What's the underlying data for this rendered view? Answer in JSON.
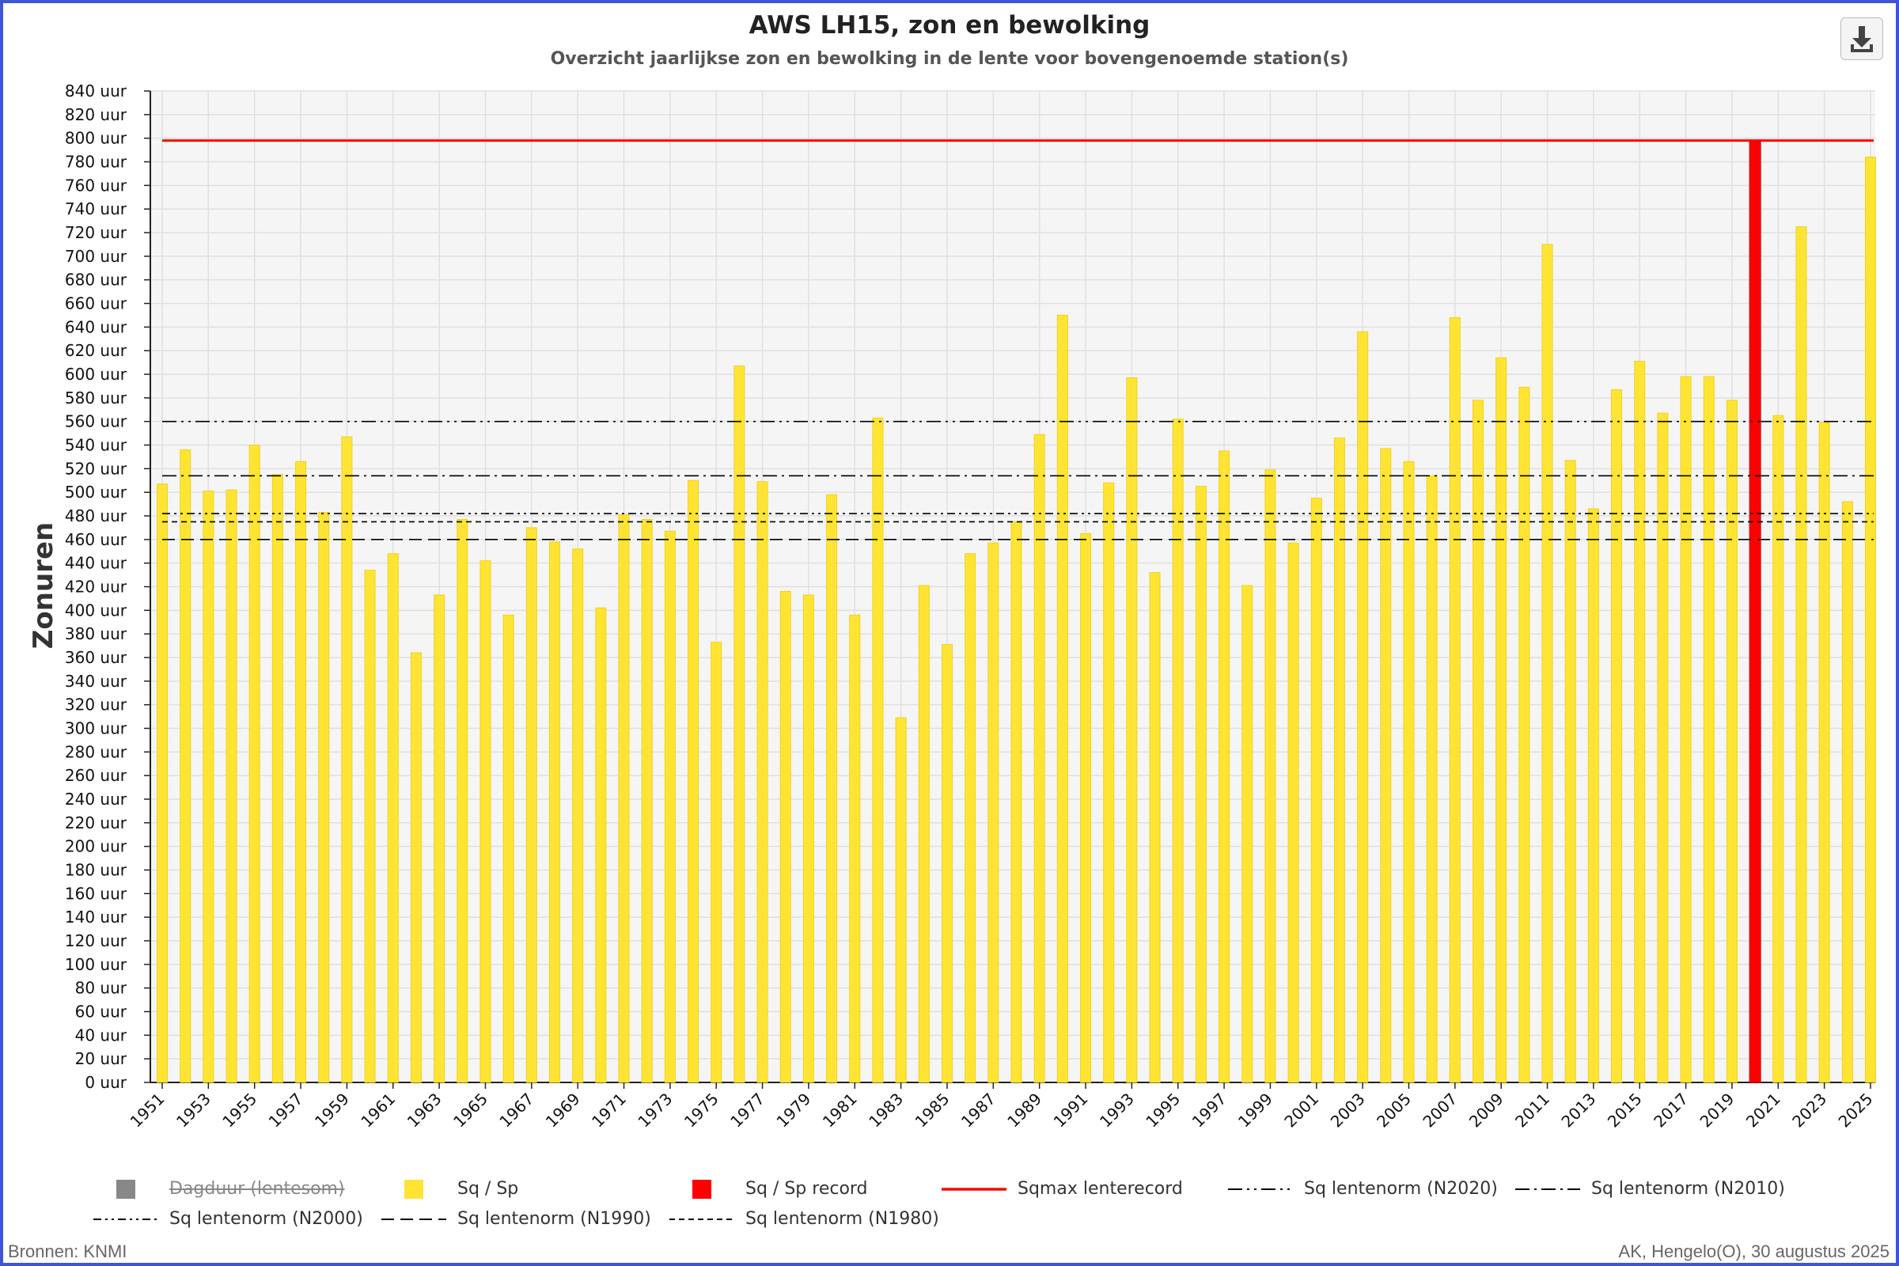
{
  "title": "AWS LH15, zon en bewolking",
  "subtitle": "Overzicht jaarlijkse zon en bewolking in de lente voor bovengenoemde station(s)",
  "download_icon": "download-icon",
  "source_text": "Bronnen: KNMI",
  "credit_text": "AK, Hengelo(O), 30 augustus 2025",
  "colors": {
    "bar": "#FFE433",
    "bar_record": "#FF0000",
    "record_line": "#FF0000",
    "norm_line": "#000000",
    "plot_bg": "#F5F5F5",
    "grid": "#E0E0E0"
  },
  "legend": [
    {
      "label": "Dagduur (lentesom)",
      "symbol": "square",
      "color": "#888888",
      "disabled": true
    },
    {
      "label": "Sq / Sp",
      "symbol": "square",
      "color": "#FFE433"
    },
    {
      "label": "Sq / Sp record",
      "symbol": "square",
      "color": "#FF0000"
    },
    {
      "label": "Sqmax lenterecord",
      "symbol": "line",
      "color": "#FF0000",
      "dash": "solid"
    },
    {
      "label": "Sq lentenorm (N2020)",
      "symbol": "line",
      "color": "#000000",
      "dash": "longdashdotdot"
    },
    {
      "label": "Sq lentenorm (N2010)",
      "symbol": "line",
      "color": "#000000",
      "dash": "longdashdot"
    },
    {
      "label": "Sq lentenorm (N2000)",
      "symbol": "line",
      "color": "#000000",
      "dash": "dashdotdot"
    },
    {
      "label": "Sq lentenorm (N1990)",
      "symbol": "line",
      "color": "#000000",
      "dash": "longdash"
    },
    {
      "label": "Sq lentenorm (N1980)",
      "symbol": "line",
      "color": "#000000",
      "dash": "dash"
    }
  ],
  "chart_data": {
    "type": "bar",
    "title": "AWS LH15, zon en bewolking",
    "subtitle": "Overzicht jaarlijkse zon en bewolking in de lente voor bovengenoemde station(s)",
    "ylabel": "Zonuren",
    "y_unit": "uur",
    "ylim": [
      0,
      840
    ],
    "y_tick_step": 20,
    "grid": true,
    "legend_position": "bottom",
    "x_tick_labels": [
      1951,
      1953,
      1955,
      1957,
      1959,
      1961,
      1963,
      1965,
      1967,
      1969,
      1971,
      1973,
      1975,
      1977,
      1979,
      1981,
      1983,
      1985,
      1987,
      1989,
      1991,
      1993,
      1995,
      1997,
      1999,
      2001,
      2003,
      2005,
      2007,
      2009,
      2011,
      2013,
      2015,
      2017,
      2019,
      2021,
      2023,
      2025
    ],
    "categories": [
      1951,
      1952,
      1953,
      1954,
      1955,
      1956,
      1957,
      1958,
      1959,
      1960,
      1961,
      1962,
      1963,
      1964,
      1965,
      1966,
      1967,
      1968,
      1969,
      1970,
      1971,
      1972,
      1973,
      1974,
      1975,
      1976,
      1977,
      1978,
      1979,
      1980,
      1981,
      1982,
      1983,
      1984,
      1985,
      1986,
      1987,
      1988,
      1989,
      1990,
      1991,
      1992,
      1993,
      1994,
      1995,
      1996,
      1997,
      1998,
      1999,
      2000,
      2001,
      2002,
      2003,
      2004,
      2005,
      2006,
      2007,
      2008,
      2009,
      2010,
      2011,
      2012,
      2013,
      2014,
      2015,
      2016,
      2017,
      2018,
      2019,
      2020,
      2021,
      2022,
      2023,
      2024,
      2025
    ],
    "series": [
      {
        "name": "Sq / Sp",
        "values": [
          507,
          536,
          501,
          502,
          540,
          515,
          526,
          483,
          547,
          434,
          448,
          364,
          413,
          477,
          442,
          396,
          470,
          458,
          452,
          402,
          481,
          477,
          467,
          510,
          373,
          607,
          509,
          416,
          413,
          498,
          396,
          563,
          309,
          421,
          371,
          448,
          457,
          475,
          549,
          650,
          465,
          508,
          597,
          432,
          562,
          505,
          535,
          421,
          519,
          457,
          495,
          546,
          636,
          537,
          526,
          514,
          648,
          578,
          614,
          589,
          710,
          527,
          486,
          587,
          611,
          567,
          598,
          598,
          578,
          797,
          565,
          725,
          559,
          492,
          784
        ]
      }
    ],
    "record": {
      "year": 2020,
      "value": 797,
      "label": "Sq / Sp record"
    },
    "reference_lines": [
      {
        "name": "Sqmax lenterecord",
        "value": 798
      },
      {
        "name": "Sq lentenorm (N2020)",
        "value": 560
      },
      {
        "name": "Sq lentenorm (N2010)",
        "value": 514
      },
      {
        "name": "Sq lentenorm (N2000)",
        "value": 482
      },
      {
        "name": "Sq lentenorm (N1990)",
        "value": 460
      },
      {
        "name": "Sq lentenorm (N1980)",
        "value": 475
      }
    ]
  }
}
